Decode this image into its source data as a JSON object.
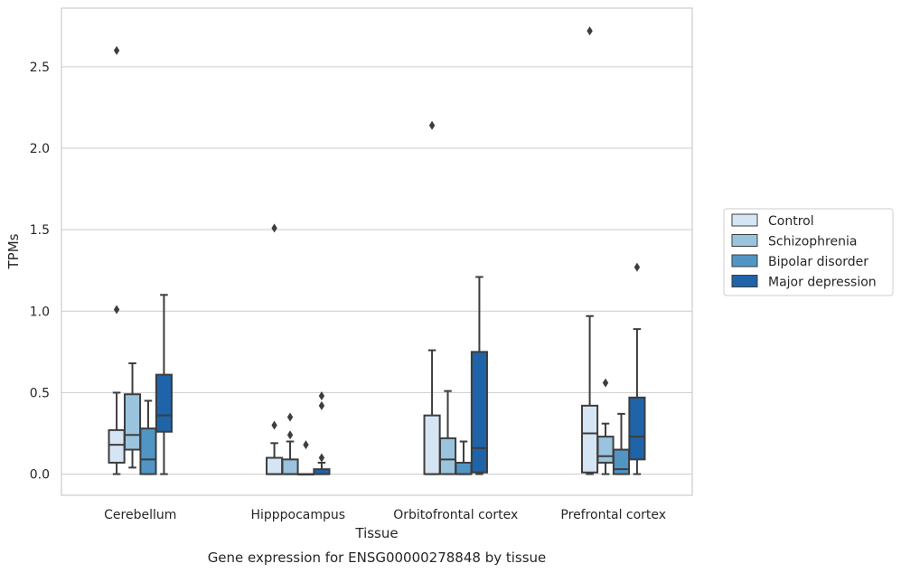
{
  "chart_data": {
    "type": "box",
    "caption": "Gene expression for ENSG00000278848 by tissue",
    "xlabel": "Tissue",
    "ylabel": "TPMs",
    "ylim": [
      -0.13,
      2.86
    ],
    "yticks": [
      "0.0",
      "0.5",
      "1.0",
      "1.5",
      "2.0",
      "2.5"
    ],
    "grid": "horizontal",
    "legend_position": "right",
    "categories": [
      "Cerebellum",
      "Hipppocampus",
      "Orbitofrontal cortex",
      "Prefrontal cortex"
    ],
    "series": [
      {
        "name": "Control",
        "color": "#d6e5f3",
        "boxes": [
          {
            "whislo": 0.0,
            "q1": 0.07,
            "med": 0.18,
            "q3": 0.27,
            "whishi": 0.5,
            "fliers": [
              1.01,
              2.6
            ]
          },
          {
            "whislo": 0.0,
            "q1": 0.0,
            "med": 0.0,
            "q3": 0.1,
            "whishi": 0.19,
            "fliers": [
              0.3,
              1.51
            ]
          },
          {
            "whislo": 0.0,
            "q1": 0.0,
            "med": 0.0,
            "q3": 0.36,
            "whishi": 0.76,
            "fliers": [
              2.14
            ]
          },
          {
            "whislo": 0.0,
            "q1": 0.01,
            "med": 0.25,
            "q3": 0.42,
            "whishi": 0.97,
            "fliers": [
              2.72
            ]
          }
        ]
      },
      {
        "name": "Schizophrenia",
        "color": "#9ac3de",
        "boxes": [
          {
            "whislo": 0.04,
            "q1": 0.15,
            "med": 0.24,
            "q3": 0.49,
            "whishi": 0.68,
            "fliers": []
          },
          {
            "whislo": 0.0,
            "q1": 0.0,
            "med": 0.0,
            "q3": 0.09,
            "whishi": 0.2,
            "fliers": [
              0.24,
              0.35
            ]
          },
          {
            "whislo": 0.0,
            "q1": 0.0,
            "med": 0.09,
            "q3": 0.22,
            "whishi": 0.51,
            "fliers": []
          },
          {
            "whislo": 0.0,
            "q1": 0.07,
            "med": 0.11,
            "q3": 0.23,
            "whishi": 0.31,
            "fliers": [
              0.56
            ]
          }
        ]
      },
      {
        "name": "Bipolar disorder",
        "color": "#5195c5",
        "boxes": [
          {
            "whislo": 0.0,
            "q1": 0.0,
            "med": 0.09,
            "q3": 0.28,
            "whishi": 0.45,
            "fliers": []
          },
          {
            "whislo": 0.0,
            "q1": 0.0,
            "med": 0.0,
            "q3": 0.0,
            "whishi": 0.0,
            "fliers": [
              0.18
            ]
          },
          {
            "whislo": 0.0,
            "q1": 0.0,
            "med": 0.0,
            "q3": 0.07,
            "whishi": 0.2,
            "fliers": []
          },
          {
            "whislo": 0.0,
            "q1": 0.0,
            "med": 0.03,
            "q3": 0.15,
            "whishi": 0.37,
            "fliers": []
          }
        ]
      },
      {
        "name": "Major depression",
        "color": "#1f63a8",
        "boxes": [
          {
            "whislo": 0.0,
            "q1": 0.26,
            "med": 0.36,
            "q3": 0.61,
            "whishi": 1.1,
            "fliers": []
          },
          {
            "whislo": 0.0,
            "q1": 0.0,
            "med": 0.0,
            "q3": 0.03,
            "whishi": 0.07,
            "fliers": [
              0.1,
              0.42,
              0.48
            ]
          },
          {
            "whislo": 0.0,
            "q1": 0.01,
            "med": 0.16,
            "q3": 0.75,
            "whishi": 1.21,
            "fliers": []
          },
          {
            "whislo": 0.0,
            "q1": 0.09,
            "med": 0.23,
            "q3": 0.47,
            "whishi": 0.89,
            "fliers": [
              1.27
            ]
          }
        ]
      }
    ]
  }
}
